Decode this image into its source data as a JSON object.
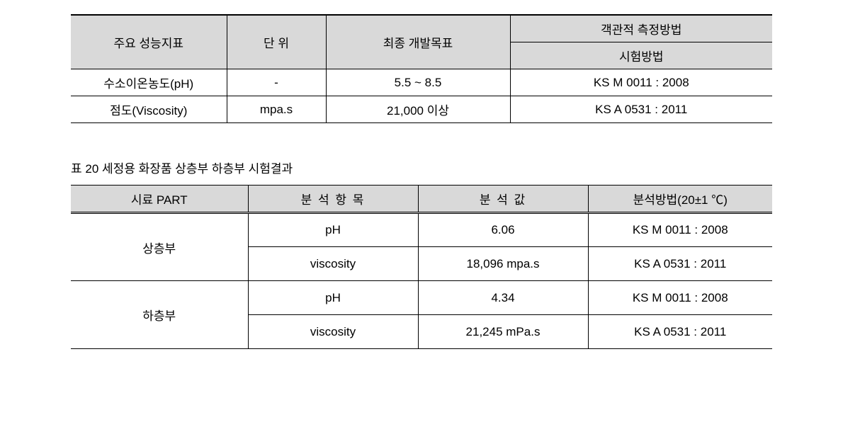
{
  "table1": {
    "headers": {
      "indicator": "주요 성능지표",
      "unit": "단 위",
      "target": "최종 개발목표",
      "objective_method": "객관적 측정방법",
      "test_method": "시험방법"
    },
    "col_widths": [
      "220px",
      "140px",
      "260px",
      "370px"
    ],
    "header_bg": "#d9d9d9",
    "rows": [
      {
        "indicator": "수소이온농도(pH)",
        "unit": "-",
        "target": "5.5 ~ 8.5",
        "method": "KS M 0011 : 2008"
      },
      {
        "indicator": "점도(Viscosity)",
        "unit": "mpa.s",
        "target": "21,000 이상",
        "method": "KS A 0531 : 2011"
      }
    ]
  },
  "caption": "표 20 세정용 화장품 상층부 하층부 시험결과",
  "table2": {
    "headers": {
      "part": "시료 PART",
      "item": "분 석 항 목",
      "value": "분 석 값",
      "method": "분석방법(20±1 ℃)"
    },
    "col_widths": [
      "250px",
      "240px",
      "240px",
      "260px"
    ],
    "header_bg": "#d9d9d9",
    "groups": [
      {
        "part": "상층부",
        "rows": [
          {
            "item": "pH",
            "value": "6.06",
            "method": "KS M 0011 : 2008"
          },
          {
            "item": "viscosity",
            "value": "18,096 mpa.s",
            "method": "KS A 0531 : 2011"
          }
        ]
      },
      {
        "part": "하층부",
        "rows": [
          {
            "item": "pH",
            "value": "4.34",
            "method": "KS M 0011 : 2008"
          },
          {
            "item": "viscosity",
            "value": "21,245 mPa.s",
            "method": "KS A 0531 : 2011"
          }
        ]
      }
    ]
  }
}
